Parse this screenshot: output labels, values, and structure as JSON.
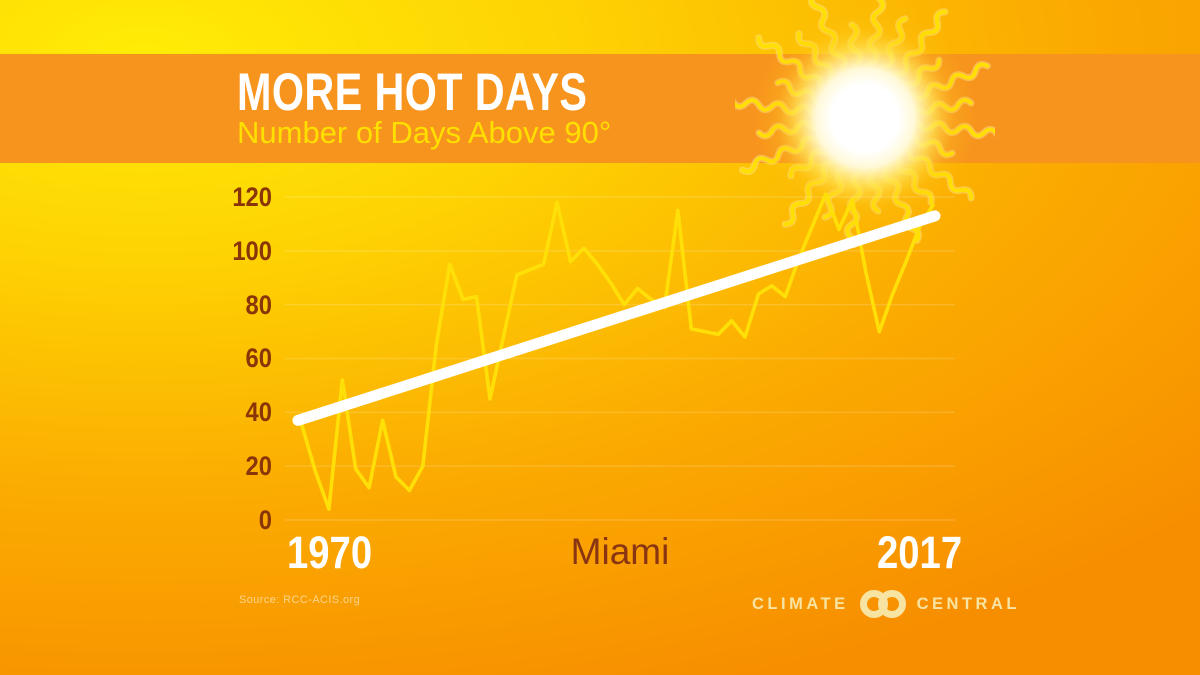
{
  "header": {
    "title": "MORE HOT DAYS",
    "subtitle": "Number of Days Above 90°"
  },
  "chart_data": {
    "type": "line",
    "title": "MORE HOT DAYS",
    "subtitle": "Number of Days Above 90°",
    "location_label": "Miami",
    "x_start_label": "1970",
    "x_end_label": "2017",
    "ylabel": "",
    "xlabel": "",
    "ylim": [
      0,
      120
    ],
    "yticks": [
      0,
      20,
      40,
      60,
      80,
      100,
      120
    ],
    "grid": true,
    "legend_position": "none",
    "years": [
      1970,
      1971,
      1972,
      1973,
      1974,
      1975,
      1976,
      1977,
      1978,
      1979,
      1980,
      1981,
      1982,
      1983,
      1984,
      1985,
      1986,
      1987,
      1988,
      1989,
      1990,
      1991,
      1992,
      1993,
      1994,
      1995,
      1996,
      1997,
      1998,
      1999,
      2000,
      2001,
      2002,
      2003,
      2004,
      2005,
      2006,
      2007,
      2008,
      2009,
      2010,
      2011,
      2012,
      2013,
      2014,
      2015,
      2016,
      2017
    ],
    "series": [
      {
        "name": "Days above 90° per year",
        "type": "line",
        "values": [
          35,
          18,
          4,
          52,
          19,
          12,
          37,
          16,
          11,
          20,
          65,
          95,
          82,
          83,
          45,
          68,
          91,
          93,
          95,
          118,
          96,
          101,
          95,
          88,
          80,
          86,
          82,
          79,
          115,
          71,
          70,
          69,
          74,
          68,
          84,
          87,
          83,
          97,
          109,
          121,
          108,
          119,
          92,
          70,
          84,
          96,
          109,
          117
        ]
      },
      {
        "name": "Linear trend",
        "type": "trend",
        "start_value": 37,
        "end_value": 113
      }
    ]
  },
  "footer": {
    "source": "Source: RCC-ACIS.org",
    "logo_left": "CLIMATE",
    "logo_right": "CENTRAL"
  },
  "colors": {
    "band": "#f7941d",
    "data_line": "#ffdf08",
    "trend_line": "#ffffff",
    "grid_line_rgba": "rgba(255,255,255,0.16)",
    "axis_text": "#8a3508",
    "title_text": "#ffffff",
    "subtitle_text": "#ffdf00",
    "logo_text": "#f8e4a2",
    "sun_ray": "#ffe000",
    "sun_ray_halo": "#fff2a8"
  }
}
